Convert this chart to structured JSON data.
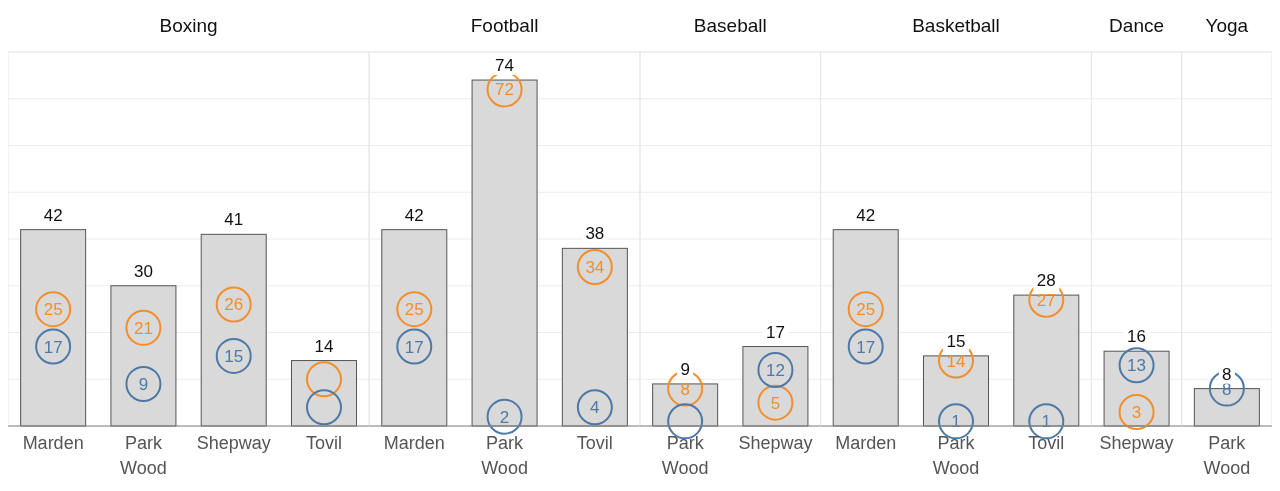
{
  "chart_data": [
    {
      "type": "bar",
      "title": "Boxing",
      "categories": [
        "Marden",
        "Park Wood",
        "Shepway",
        "Tovil"
      ],
      "ylim": [
        0,
        80
      ],
      "yticks": [
        {
          "value": 0,
          "label": null
        },
        {
          "value": 10,
          "label": null
        },
        {
          "value": 20,
          "label": null
        },
        {
          "value": 30,
          "label": null
        },
        {
          "value": 40,
          "label": null
        },
        {
          "value": 50,
          "label": null
        },
        {
          "value": 60,
          "label": null
        },
        {
          "value": 70,
          "label": null
        },
        {
          "value": 80,
          "label": null
        }
      ],
      "grid": "y",
      "tick_labels": "x",
      "marker": "circle",
      "series": [
        {
          "color": "#d9d9d9",
          "values": [
            42,
            30,
            41,
            14
          ],
          "value_labels": [
            "42",
            "30",
            "41",
            "14"
          ]
        },
        {
          "type": "scatter",
          "color": "#f28e2b",
          "values": [
            25,
            21,
            26,
            10
          ],
          "value_labels": [
            "25",
            "21",
            "26",
            null
          ]
        },
        {
          "type": "scatter",
          "color": "#4e79a7",
          "values": [
            17,
            9,
            15,
            4
          ],
          "value_labels": [
            "17",
            "9",
            "15",
            null
          ]
        }
      ]
    },
    {
      "type": "bar",
      "title": "Football",
      "categories": [
        "Marden",
        "Park Wood",
        "Tovil"
      ],
      "ylim": [
        0,
        80
      ],
      "yticks": [
        {
          "value": 0,
          "label": null
        },
        {
          "value": 10,
          "label": null
        },
        {
          "value": 20,
          "label": null
        },
        {
          "value": 30,
          "label": null
        },
        {
          "value": 40,
          "label": null
        },
        {
          "value": 50,
          "label": null
        },
        {
          "value": 60,
          "label": null
        },
        {
          "value": 70,
          "label": null
        },
        {
          "value": 80,
          "label": null
        }
      ],
      "grid": "y",
      "tick_labels": "x",
      "marker": "circle",
      "series": [
        {
          "color": "#d9d9d9",
          "values": [
            42,
            74,
            38
          ],
          "value_labels": [
            "42",
            "74",
            "38"
          ]
        },
        {
          "type": "scatter",
          "color": "#f28e2b",
          "values": [
            25,
            72,
            34
          ],
          "value_labels": [
            "25",
            "72",
            "34"
          ]
        },
        {
          "type": "scatter",
          "color": "#4e79a7",
          "values": [
            17,
            2,
            4
          ],
          "value_labels": [
            "17",
            "2",
            "4"
          ]
        }
      ]
    },
    {
      "type": "bar",
      "title": "Baseball",
      "categories": [
        "Park Wood",
        "Shepway"
      ],
      "ylim": [
        0,
        80
      ],
      "yticks": [
        {
          "value": 0,
          "label": null
        },
        {
          "value": 10,
          "label": null
        },
        {
          "value": 20,
          "label": null
        },
        {
          "value": 30,
          "label": null
        },
        {
          "value": 40,
          "label": null
        },
        {
          "value": 50,
          "label": null
        },
        {
          "value": 60,
          "label": null
        },
        {
          "value": 70,
          "label": null
        },
        {
          "value": 80,
          "label": null
        }
      ],
      "grid": "y",
      "tick_labels": "x",
      "marker": "circle",
      "series": [
        {
          "color": "#d9d9d9",
          "values": [
            9,
            17
          ],
          "value_labels": [
            "9",
            "17"
          ]
        },
        {
          "type": "scatter",
          "color": "#f28e2b",
          "values": [
            8,
            5
          ],
          "value_labels": [
            "8",
            "5"
          ]
        },
        {
          "type": "scatter",
          "color": "#4e79a7",
          "values": [
            1,
            12
          ],
          "value_labels": [
            null,
            "12"
          ]
        }
      ]
    },
    {
      "type": "bar",
      "title": "Basketball",
      "categories": [
        "Marden",
        "Park Wood",
        "Tovil"
      ],
      "ylim": [
        0,
        80
      ],
      "yticks": [
        {
          "value": 0,
          "label": null
        },
        {
          "value": 10,
          "label": null
        },
        {
          "value": 20,
          "label": null
        },
        {
          "value": 30,
          "label": null
        },
        {
          "value": 40,
          "label": null
        },
        {
          "value": 50,
          "label": null
        },
        {
          "value": 60,
          "label": null
        },
        {
          "value": 70,
          "label": null
        },
        {
          "value": 80,
          "label": null
        }
      ],
      "grid": "y",
      "tick_labels": "x",
      "marker": "circle",
      "series": [
        {
          "color": "#d9d9d9",
          "values": [
            42,
            15,
            28
          ],
          "value_labels": [
            "42",
            "15",
            "28"
          ]
        },
        {
          "type": "scatter",
          "color": "#f28e2b",
          "values": [
            25,
            14,
            27
          ],
          "value_labels": [
            "25",
            "14",
            "27"
          ]
        },
        {
          "type": "scatter",
          "color": "#4e79a7",
          "values": [
            17,
            1,
            1
          ],
          "value_labels": [
            "17",
            "1",
            "1"
          ]
        }
      ]
    },
    {
      "type": "bar",
      "title": "Dance",
      "categories": [
        "Shepway"
      ],
      "ylim": [
        0,
        80
      ],
      "yticks": [
        {
          "value": 0,
          "label": null
        },
        {
          "value": 10,
          "label": null
        },
        {
          "value": 20,
          "label": null
        },
        {
          "value": 30,
          "label": null
        },
        {
          "value": 40,
          "label": null
        },
        {
          "value": 50,
          "label": null
        },
        {
          "value": 60,
          "label": null
        },
        {
          "value": 70,
          "label": null
        },
        {
          "value": 80,
          "label": null
        }
      ],
      "grid": "y",
      "tick_labels": "x",
      "marker": "circle",
      "series": [
        {
          "color": "#d9d9d9",
          "values": [
            16
          ],
          "value_labels": [
            "16"
          ]
        },
        {
          "type": "scatter",
          "color": "#f28e2b",
          "values": [
            3
          ],
          "value_labels": [
            "3"
          ]
        },
        {
          "type": "scatter",
          "color": "#4e79a7",
          "values": [
            13
          ],
          "value_labels": [
            "13"
          ]
        }
      ]
    },
    {
      "type": "bar",
      "title": "Yoga",
      "categories": [
        "Park Wood"
      ],
      "ylim": [
        0,
        80
      ],
      "yticks": [
        {
          "value": 0,
          "label": null
        },
        {
          "value": 10,
          "label": null
        },
        {
          "value": 20,
          "label": null
        },
        {
          "value": 30,
          "label": null
        },
        {
          "value": 40,
          "label": null
        },
        {
          "value": 50,
          "label": null
        },
        {
          "value": 60,
          "label": null
        },
        {
          "value": 70,
          "label": null
        },
        {
          "value": 80,
          "label": null
        }
      ],
      "grid": "y",
      "tick_labels": "x",
      "marker": "circle",
      "series": [
        {
          "color": "#d9d9d9",
          "values": [
            8
          ],
          "value_labels": [
            "8"
          ]
        },
        {
          "type": "scatter",
          "color": "#4e79a7",
          "values": [
            8
          ],
          "value_labels": [
            "8"
          ]
        }
      ]
    }
  ]
}
